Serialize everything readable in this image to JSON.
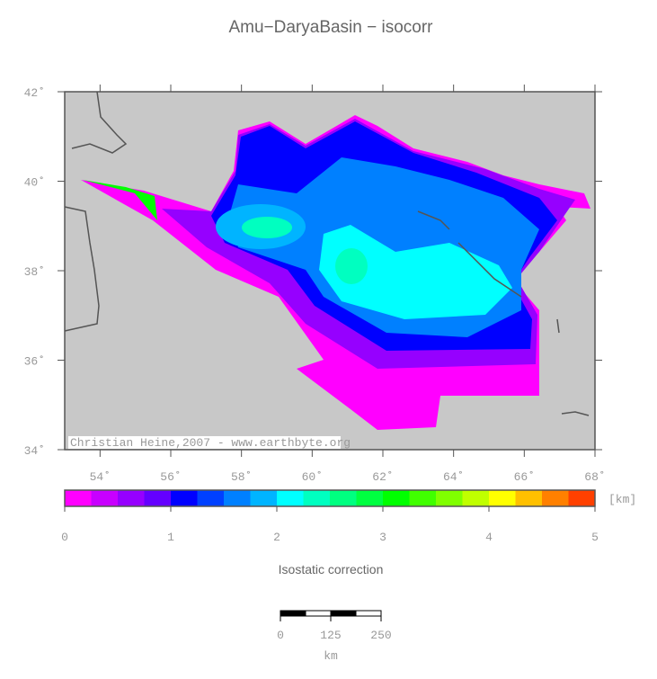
{
  "map": {
    "title": "Amu−DaryaBasin − isocorr",
    "credit": "Christian Heine,2007 - www.earthbyte.org",
    "xlim": [
      53,
      68
    ],
    "ylim": [
      34,
      42
    ],
    "xticks": [
      {
        "value": 54,
        "label": "54˚"
      },
      {
        "value": 56,
        "label": "56˚"
      },
      {
        "value": 58,
        "label": "58˚"
      },
      {
        "value": 60,
        "label": "60˚"
      },
      {
        "value": 62,
        "label": "62˚"
      },
      {
        "value": 64,
        "label": "64˚"
      },
      {
        "value": 66,
        "label": "66˚"
      },
      {
        "value": 68,
        "label": "68˚"
      }
    ],
    "yticks": [
      {
        "value": 34,
        "label": "34˚"
      },
      {
        "value": 36,
        "label": "36˚"
      },
      {
        "value": 38,
        "label": "38˚"
      },
      {
        "value": 40,
        "label": "40˚"
      },
      {
        "value": 42,
        "label": "42˚"
      }
    ]
  },
  "colorbar": {
    "label": "Isostatic correction",
    "unit": "[km]",
    "clim": [
      0,
      5
    ],
    "ticks": [
      0,
      1,
      2,
      3,
      4,
      5
    ],
    "colors": [
      "#ff00ff",
      "#c800ff",
      "#9600ff",
      "#6400ff",
      "#0000ff",
      "#0040ff",
      "#0080ff",
      "#00b4ff",
      "#00ffff",
      "#00ffc0",
      "#00ff80",
      "#00ff40",
      "#00ff00",
      "#40ff00",
      "#80ff00",
      "#c0ff00",
      "#ffff00",
      "#ffc000",
      "#ff8000",
      "#ff4000"
    ]
  },
  "scale_bar": {
    "ticks": [
      0,
      125,
      250
    ],
    "unit": "km"
  }
}
